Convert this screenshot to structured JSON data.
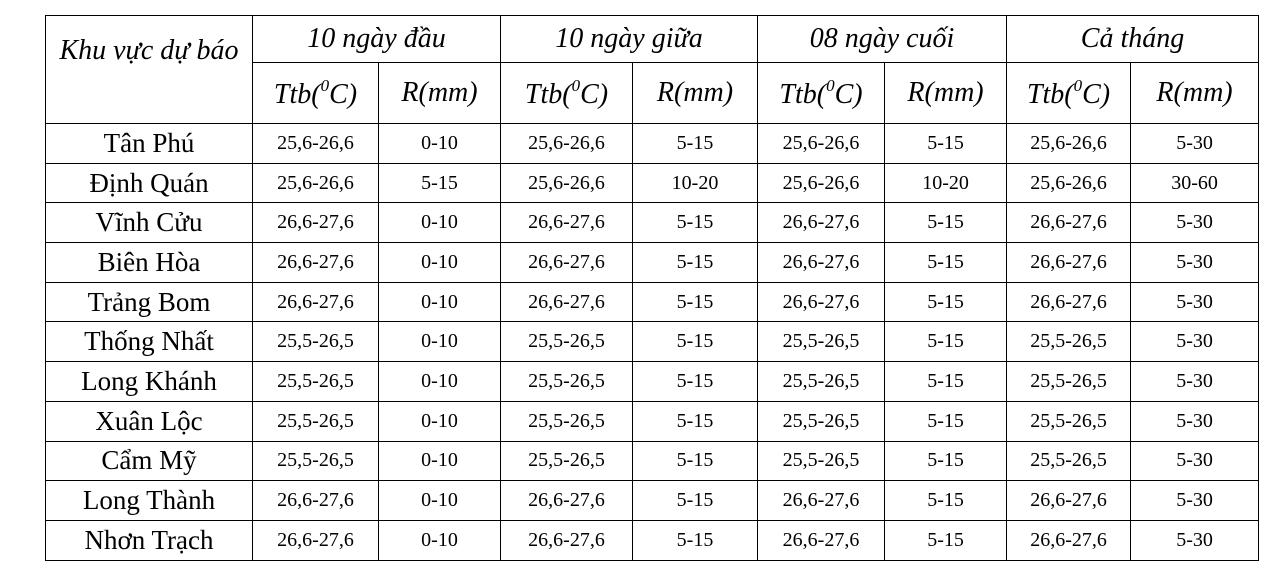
{
  "table": {
    "corner": "Khu vực dự báo",
    "periods": [
      "10 ngày đầu",
      "10 ngày giữa",
      "08 ngày cuối",
      "Cả tháng"
    ],
    "subheaders": [
      {
        "prefix": "Ttb(",
        "sup": "0",
        "suffix": "C)"
      },
      "R(mm)",
      {
        "prefix": "Ttb(",
        "sup": "0",
        "suffix": "C)"
      },
      "R(mm)",
      {
        "prefix": "Ttb(",
        "sup": "0",
        "suffix": "C)"
      },
      "R(mm)",
      {
        "prefix": "Ttb(",
        "sup": "0",
        "suffix": "C)"
      },
      "R(mm)"
    ],
    "rows": [
      [
        "Tân Phú",
        "25,6-26,6",
        "0-10",
        "25,6-26,6",
        "5-15",
        "25,6-26,6",
        "5-15",
        "25,6-26,6",
        "5-30"
      ],
      [
        "Định Quán",
        "25,6-26,6",
        "5-15",
        "25,6-26,6",
        "10-20",
        "25,6-26,6",
        "10-20",
        "25,6-26,6",
        "30-60"
      ],
      [
        "Vĩnh Cửu",
        "26,6-27,6",
        "0-10",
        "26,6-27,6",
        "5-15",
        "26,6-27,6",
        "5-15",
        "26,6-27,6",
        "5-30"
      ],
      [
        "Biên Hòa",
        "26,6-27,6",
        "0-10",
        "26,6-27,6",
        "5-15",
        "26,6-27,6",
        "5-15",
        "26,6-27,6",
        "5-30"
      ],
      [
        "Trảng Bom",
        "26,6-27,6",
        "0-10",
        "26,6-27,6",
        "5-15",
        "26,6-27,6",
        "5-15",
        "26,6-27,6",
        "5-30"
      ],
      [
        "Thống Nhất",
        "25,5-26,5",
        "0-10",
        "25,5-26,5",
        "5-15",
        "25,5-26,5",
        "5-15",
        "25,5-26,5",
        "5-30"
      ],
      [
        "Long Khánh",
        "25,5-26,5",
        "0-10",
        "25,5-26,5",
        "5-15",
        "25,5-26,5",
        "5-15",
        "25,5-26,5",
        "5-30"
      ],
      [
        "Xuân Lộc",
        "25,5-26,5",
        "0-10",
        "25,5-26,5",
        "5-15",
        "25,5-26,5",
        "5-15",
        "25,5-26,5",
        "5-30"
      ],
      [
        "Cẩm Mỹ",
        "25,5-26,5",
        "0-10",
        "25,5-26,5",
        "5-15",
        "25,5-26,5",
        "5-15",
        "25,5-26,5",
        "5-30"
      ],
      [
        "Long Thành",
        "26,6-27,6",
        "0-10",
        "26,6-27,6",
        "5-15",
        "26,6-27,6",
        "5-15",
        "26,6-27,6",
        "5-30"
      ],
      [
        "Nhơn Trạch",
        "26,6-27,6",
        "0-10",
        "26,6-27,6",
        "5-15",
        "26,6-27,6",
        "5-15",
        "26,6-27,6",
        "5-30"
      ]
    ]
  }
}
